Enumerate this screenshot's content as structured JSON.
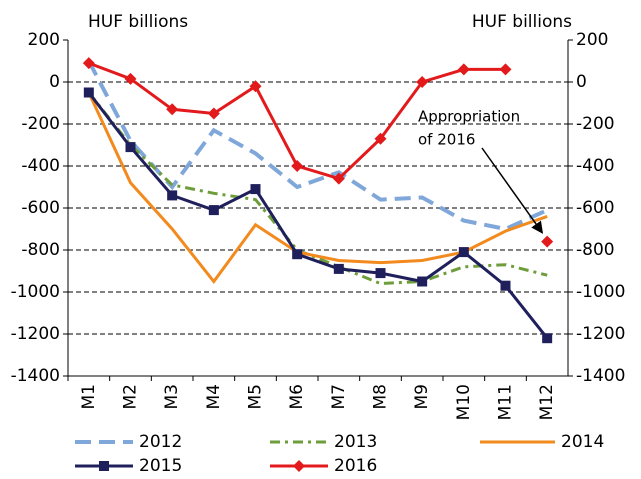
{
  "chart_data": {
    "type": "line",
    "ylabel": "HUF billions",
    "y2label": "HUF billions",
    "categories": [
      "M1",
      "M2",
      "M3",
      "M4",
      "M5",
      "M6",
      "M7",
      "M8",
      "M9",
      "M10",
      "M11",
      "M12"
    ],
    "ylim": [
      -1400,
      200
    ],
    "yticks": [
      -1400,
      -1200,
      -1000,
      -800,
      -600,
      -400,
      -200,
      0,
      200
    ],
    "y2lim": [
      -1400,
      200
    ],
    "y2ticks": [
      -1400,
      -1200,
      -1000,
      -800,
      -600,
      -400,
      -200,
      0,
      200
    ],
    "grid": true,
    "series": [
      {
        "name": "2012",
        "color": "#7fa7d9",
        "style": "dashed",
        "values": [
          100,
          -280,
          -500,
          -230,
          -340,
          -500,
          -430,
          -560,
          -550,
          -660,
          -700,
          -610
        ]
      },
      {
        "name": "2013",
        "color": "#6e9e3c",
        "style": "dashdot",
        "values": [
          -50,
          -300,
          -490,
          -530,
          -560,
          -800,
          -880,
          -960,
          -950,
          -880,
          -870,
          -920
        ]
      },
      {
        "name": "2014",
        "color": "#f28a1e",
        "style": "solid",
        "values": [
          -50,
          -480,
          -700,
          -950,
          -680,
          -810,
          -850,
          -860,
          -850,
          -810,
          -710,
          -640
        ]
      },
      {
        "name": "2015",
        "color": "#1f1f5c",
        "style": "solid",
        "marker": "square",
        "values": [
          -50,
          -310,
          -540,
          -610,
          -510,
          -820,
          -890,
          -910,
          -950,
          -810,
          -970,
          -1220
        ]
      },
      {
        "name": "2016",
        "color": "#e31a1c",
        "style": "solid",
        "marker": "diamond",
        "values": [
          90,
          15,
          -130,
          -150,
          -20,
          -400,
          -460,
          -270,
          0,
          60,
          60,
          null
        ]
      }
    ],
    "annotation": {
      "lines": [
        "Appropriation",
        "of 2016"
      ],
      "category": "M12",
      "value": -760,
      "color": "#e31a1c",
      "marker": "diamond"
    }
  }
}
